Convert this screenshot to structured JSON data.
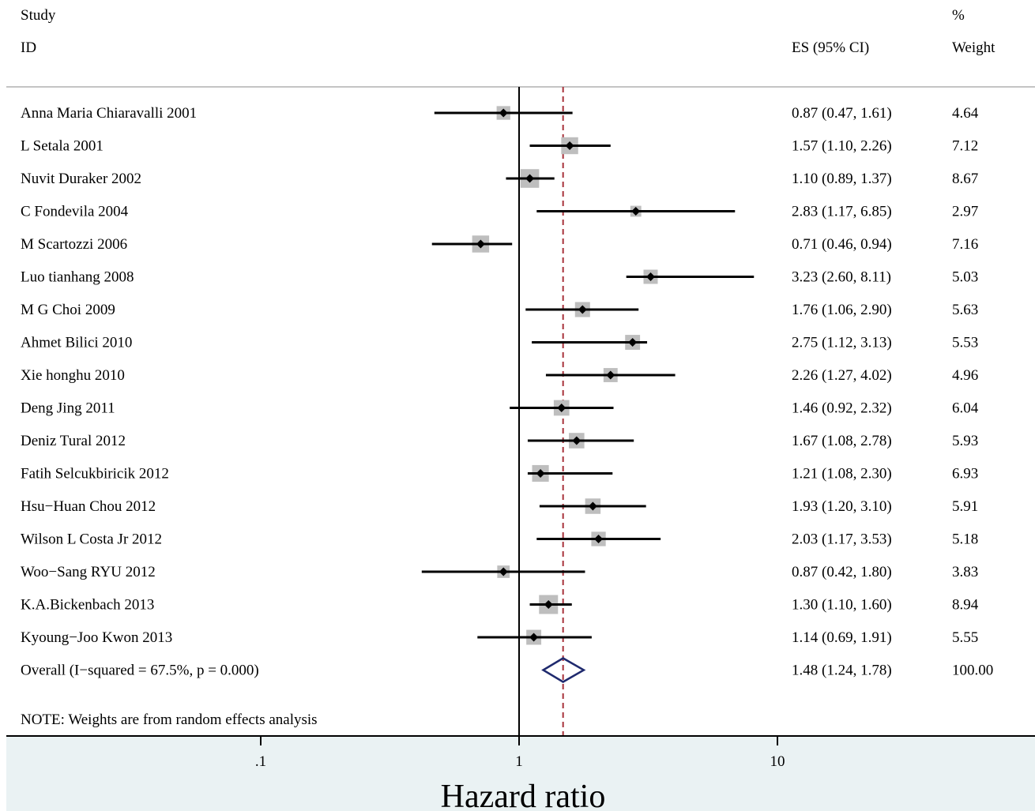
{
  "headers": {
    "study_line1": "Study",
    "study_line2": "ID",
    "es": "ES (95% CI)",
    "weight_line1": "%",
    "weight_line2": "Weight"
  },
  "note": "NOTE: Weights are from random effects analysis",
  "colors": {
    "point_box": "#bebebe",
    "point_marker": "#000000",
    "ci_line": "#000000",
    "null_line": "#000000",
    "overall_line": "#a8323b",
    "overall_diamond": "#1f2a6e",
    "axis_band": "#eaf2f3"
  },
  "chart_data": {
    "type": "forest",
    "xlabel": "Hazard ratio",
    "x_scale": "log",
    "x_ticks": [
      {
        "value": 0.1,
        "label": ".1"
      },
      {
        "value": 1,
        "label": "1"
      },
      {
        "value": 10,
        "label": "10"
      }
    ],
    "xlim": [
      0.0505,
      46
    ],
    "null_value": 1,
    "overall_line_value": 1.48,
    "studies": [
      {
        "id": "Anna Maria Chiaravalli 2001",
        "es": 0.87,
        "lo": 0.47,
        "hi": 1.61,
        "es_text": "0.87 (0.47, 1.61)",
        "weight": 4.64,
        "weight_text": "4.64"
      },
      {
        "id": "L Setala 2001",
        "es": 1.57,
        "lo": 1.1,
        "hi": 2.26,
        "es_text": "1.57 (1.10, 2.26)",
        "weight": 7.12,
        "weight_text": "7.12"
      },
      {
        "id": "Nuvit Duraker 2002",
        "es": 1.1,
        "lo": 0.89,
        "hi": 1.37,
        "es_text": "1.10 (0.89, 1.37)",
        "weight": 8.67,
        "weight_text": "8.67"
      },
      {
        "id": "C Fondevila 2004",
        "es": 2.83,
        "lo": 1.17,
        "hi": 6.85,
        "es_text": "2.83 (1.17, 6.85)",
        "weight": 2.97,
        "weight_text": "2.97"
      },
      {
        "id": "M Scartozzi 2006",
        "es": 0.71,
        "lo": 0.46,
        "hi": 0.94,
        "es_text": "0.71 (0.46, 0.94)",
        "weight": 7.16,
        "weight_text": "7.16"
      },
      {
        "id": "Luo tianhang 2008",
        "es": 3.23,
        "lo": 2.6,
        "hi": 8.11,
        "es_text": "3.23 (2.60, 8.11)",
        "weight": 5.03,
        "weight_text": "5.03"
      },
      {
        "id": "M G Choi 2009",
        "es": 1.76,
        "lo": 1.06,
        "hi": 2.9,
        "es_text": "1.76 (1.06, 2.90)",
        "weight": 5.63,
        "weight_text": "5.63"
      },
      {
        "id": "Ahmet Bilici 2010",
        "es": 2.75,
        "lo": 1.12,
        "hi": 3.13,
        "es_text": "2.75 (1.12, 3.13)",
        "weight": 5.53,
        "weight_text": "5.53"
      },
      {
        "id": "Xie honghu 2010",
        "es": 2.26,
        "lo": 1.27,
        "hi": 4.02,
        "es_text": "2.26 (1.27, 4.02)",
        "weight": 4.96,
        "weight_text": "4.96"
      },
      {
        "id": "Deng Jing 2011",
        "es": 1.46,
        "lo": 0.92,
        "hi": 2.32,
        "es_text": "1.46 (0.92, 2.32)",
        "weight": 6.04,
        "weight_text": "6.04"
      },
      {
        "id": "Deniz Tural 2012",
        "es": 1.67,
        "lo": 1.08,
        "hi": 2.78,
        "es_text": "1.67 (1.08, 2.78)",
        "weight": 5.93,
        "weight_text": "5.93"
      },
      {
        "id": "Fatih Selcukbiricik 2012",
        "es": 1.21,
        "lo": 1.08,
        "hi": 2.3,
        "es_text": "1.21 (1.08, 2.30)",
        "weight": 6.93,
        "weight_text": "6.93"
      },
      {
        "id": "Hsu−Huan Chou 2012",
        "es": 1.93,
        "lo": 1.2,
        "hi": 3.1,
        "es_text": "1.93 (1.20, 3.10)",
        "weight": 5.91,
        "weight_text": "5.91"
      },
      {
        "id": "Wilson L Costa Jr 2012",
        "es": 2.03,
        "lo": 1.17,
        "hi": 3.53,
        "es_text": "2.03 (1.17, 3.53)",
        "weight": 5.18,
        "weight_text": "5.18"
      },
      {
        "id": "Woo−Sang RYU 2012",
        "es": 0.87,
        "lo": 0.42,
        "hi": 1.8,
        "es_text": "0.87 (0.42, 1.80)",
        "weight": 3.83,
        "weight_text": "3.83"
      },
      {
        "id": "K.A.Bickenbach 2013",
        "es": 1.3,
        "lo": 1.1,
        "hi": 1.6,
        "es_text": "1.30 (1.10, 1.60)",
        "weight": 8.94,
        "weight_text": "8.94"
      },
      {
        "id": "Kyoung−Joo Kwon 2013",
        "es": 1.14,
        "lo": 0.69,
        "hi": 1.91,
        "es_text": "1.14 (0.69, 1.91)",
        "weight": 5.55,
        "weight_text": "5.55"
      }
    ],
    "overall": {
      "id": "Overall  (I−squared = 67.5%, p = 0.000)",
      "es": 1.48,
      "lo": 1.24,
      "hi": 1.78,
      "es_text": "1.48 (1.24, 1.78)",
      "weight_text": "100.00"
    }
  }
}
